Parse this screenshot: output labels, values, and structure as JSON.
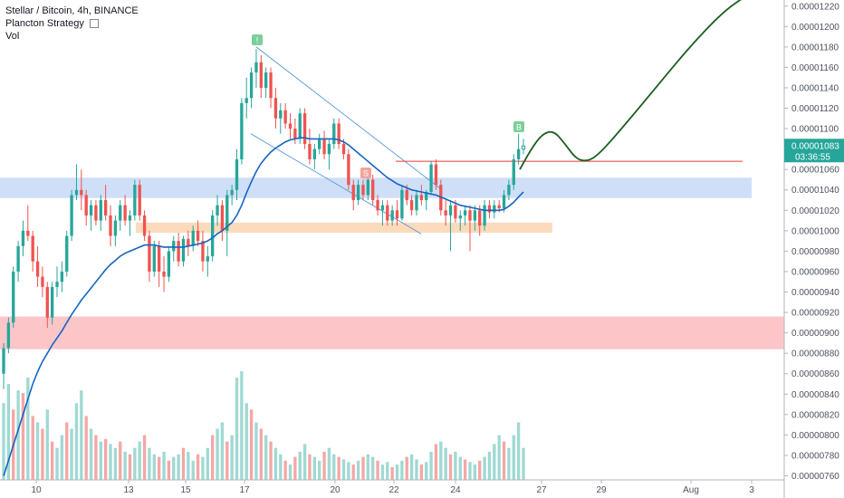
{
  "legend": {
    "symbol_line": "Stellar / Bitcoin, 4h, BINANCE",
    "strategy": "Plancton Strategy",
    "strategy_icon": "settings-icon",
    "vol": "Vol"
  },
  "price_label": {
    "value": "0.00001083",
    "countdown": "03:36:55",
    "color": "#26a69a"
  },
  "markers": {
    "top": "!",
    "sell": "S",
    "buy": "B"
  },
  "colors": {
    "up": "#26a69a",
    "down": "#ef5350",
    "vol_up": "#9fd9d3",
    "vol_down": "#f5a7a5",
    "ma": "#1565c0",
    "projection": "#1b5e20",
    "resistance_line": "#e53935",
    "zone_blue": "#c7d9f7",
    "zone_orange": "#fbd5b0",
    "zone_red": "#fbbcbf",
    "channel": "#4a8fd6"
  },
  "chart_data": {
    "type": "candlestick",
    "title": "Stellar / Bitcoin, 4h, BINANCE",
    "y_axis": {
      "range": [
        7.56e-06,
        1.226e-05
      ],
      "tick_labels": [
        "0.00001220",
        "0.00001200",
        "0.00001180",
        "0.00001160",
        "0.00001140",
        "0.00001120",
        "0.00001100",
        "0.00001080",
        "0.00001060",
        "0.00001040",
        "0.00001020",
        "0.00001000",
        "0.00000980",
        "0.00000960",
        "0.00000940",
        "0.00000920",
        "0.00000900",
        "0.00000880",
        "0.00000860",
        "0.00000840",
        "0.00000820",
        "0.00000800",
        "0.00000780",
        "0.00000760"
      ]
    },
    "x_axis": {
      "tick_labels": [
        "10",
        "13",
        "15",
        "17",
        "20",
        "22",
        "24",
        "27",
        "29",
        "Aug",
        "3"
      ]
    },
    "candles": [
      [
        8.6e-06,
        8.9e-06,
        8.45e-06,
        8.85e-06
      ],
      [
        8.85e-06,
        9.15e-06,
        8.8e-06,
        9.1e-06
      ],
      [
        9.1e-06,
        9.65e-06,
        9.05e-06,
        9.6e-06
      ],
      [
        9.6e-06,
        9.9e-06,
        9.5e-06,
        9.85e-06
      ],
      [
        9.85e-06,
        1.01e-05,
        9.75e-06,
        1e-05
      ],
      [
        1e-05,
        1.025e-05,
        9.9e-06,
        9.95e-06
      ],
      [
        9.95e-06,
        1e-05,
        9.6e-06,
        9.7e-06
      ],
      [
        9.7e-06,
        9.85e-06,
        9.45e-06,
        9.55e-06
      ],
      [
        9.55e-06,
        9.65e-06,
        9.35e-06,
        9.45e-06
      ],
      [
        9.45e-06,
        9.5e-06,
        9.05e-06,
        9.15e-06
      ],
      [
        9.15e-06,
        9.5e-06,
        9.08e-06,
        9.45e-06
      ],
      [
        9.45e-06,
        9.65e-06,
        9.35e-06,
        9.5e-06
      ],
      [
        9.5e-06,
        9.7e-06,
        9.4e-06,
        9.6e-06
      ],
      [
        9.6e-06,
        1e-05,
        9.55e-06,
        9.95e-06
      ],
      [
        9.95e-06,
        1.04e-05,
        9.9e-06,
        1.035e-05
      ],
      [
        1.035e-05,
        1.065e-05,
        1.03e-05,
        1.04e-05
      ],
      [
        1.04e-05,
        1.06e-05,
        1.02e-05,
        1.035e-05
      ],
      [
        1.035e-05,
        1.04e-05,
        1.005e-05,
        1.015e-05
      ],
      [
        1.015e-05,
        1.03e-05,
        1e-05,
        1.025e-05
      ],
      [
        1.025e-05,
        1.03e-05,
        1.005e-05,
        1.01e-05
      ],
      [
        1.01e-05,
        1.035e-05,
        1e-05,
        1.03e-05
      ],
      [
        1.03e-05,
        1.045e-05,
        1.01e-05,
        1.015e-05
      ],
      [
        1.015e-05,
        1.025e-05,
        9.85e-06,
        9.95e-06
      ],
      [
        9.95e-06,
        1.015e-05,
        9.85e-06,
        1.01e-05
      ],
      [
        1.01e-05,
        1.03e-05,
        1e-05,
        1.025e-05
      ],
      [
        1.025e-05,
        1.035e-05,
        1.005e-05,
        1.01e-05
      ],
      [
        1.01e-05,
        1.02e-05,
        9.95e-06,
        1.015e-05
      ],
      [
        1.015e-05,
        1.05e-05,
        1.01e-05,
        1.045e-05
      ],
      [
        1.045e-05,
        1.05e-05,
        1.01e-05,
        1.015e-05
      ],
      [
        1.015e-05,
        1.02e-05,
        9.9e-06,
        9.95e-06
      ],
      [
        9.95e-06,
        1e-05,
        9.5e-06,
        9.6e-06
      ],
      [
        9.6e-06,
        9.9e-06,
        9.55e-06,
        9.85e-06
      ],
      [
        9.85e-06,
        9.9e-06,
        9.45e-06,
        9.6e-06
      ],
      [
        9.6e-06,
        9.75e-06,
        9.4e-06,
        9.55e-06
      ],
      [
        9.55e-06,
        9.85e-06,
        9.5e-06,
        9.8e-06
      ],
      [
        9.8e-06,
        9.95e-06,
        9.7e-06,
        9.9e-06
      ],
      [
        9.9e-06,
        9.98e-06,
        9.65e-06,
        9.7e-06
      ],
      [
        9.7e-06,
        9.95e-06,
        9.65e-06,
        9.92e-06
      ],
      [
        9.92e-06,
        1e-05,
        9.75e-06,
        9.85e-06
      ],
      [
        9.85e-06,
        1.005e-05,
        9.8e-06,
        1e-05
      ],
      [
        1e-05,
        1.01e-05,
        9.85e-06,
        9.9e-06
      ],
      [
        9.9e-06,
        1e-05,
        9.6e-06,
        9.7e-06
      ],
      [
        9.7e-06,
        9.85e-06,
        9.55e-06,
        9.75e-06
      ],
      [
        9.75e-06,
        1.02e-05,
        9.7e-06,
        1.015e-05
      ],
      [
        1.015e-05,
        1.035e-05,
        1.005e-05,
        1.025e-05
      ],
      [
        1.025e-05,
        1.03e-05,
        9.9e-06,
        1e-05
      ],
      [
        1e-05,
        1.04e-05,
        9.75e-06,
        1.035e-05
      ],
      [
        1.035e-05,
        1.045e-05,
        1.025e-05,
        1.04e-05
      ],
      [
        1.04e-05,
        1.08e-05,
        1.03e-05,
        1.07e-05
      ],
      [
        1.07e-05,
        1.13e-05,
        1.065e-05,
        1.125e-05
      ],
      [
        1.125e-05,
        1.15e-05,
        1.11e-05,
        1.13e-05
      ],
      [
        1.13e-05,
        1.16e-05,
        1.12e-05,
        1.155e-05
      ],
      [
        1.155e-05,
        1.178e-05,
        1.14e-05,
        1.165e-05
      ],
      [
        1.165e-05,
        1.172e-05,
        1.13e-05,
        1.14e-05
      ],
      [
        1.14e-05,
        1.16e-05,
        1.13e-05,
        1.155e-05
      ],
      [
        1.155e-05,
        1.16e-05,
        1.12e-05,
        1.13e-05
      ],
      [
        1.13e-05,
        1.14e-05,
        1.1e-05,
        1.11e-05
      ],
      [
        1.11e-05,
        1.125e-05,
        1.095e-05,
        1.118e-05
      ],
      [
        1.118e-05,
        1.125e-05,
        1.1e-05,
        1.105e-05
      ],
      [
        1.105e-05,
        1.115e-05,
        1.09e-05,
        1.1e-05
      ],
      [
        1.1e-05,
        1.11e-05,
        1.085e-05,
        1.09e-05
      ],
      [
        1.09e-05,
        1.12e-05,
        1.085e-05,
        1.115e-05
      ],
      [
        1.115e-05,
        1.12e-05,
        1.08e-05,
        1.085e-05
      ],
      [
        1.085e-05,
        1.1e-05,
        1.065e-05,
        1.07e-05
      ],
      [
        1.07e-05,
        1.085e-05,
        1.06e-05,
        1.08e-05
      ],
      [
        1.08e-05,
        1.095e-05,
        1.075e-05,
        1.09e-05
      ],
      [
        1.09e-05,
        1.098e-05,
        1.07e-05,
        1.075e-05
      ],
      [
        1.075e-05,
        1.09e-05,
        1.06e-05,
        1.085e-05
      ],
      [
        1.085e-05,
        1.11e-05,
        1.08e-05,
        1.105e-05
      ],
      [
        1.105e-05,
        1.11e-05,
        1.08e-05,
        1.085e-05
      ],
      [
        1.085e-05,
        1.09e-05,
        1.07e-05,
        1.075e-05
      ],
      [
        1.075e-05,
        1.08e-05,
        1.04e-05,
        1.045e-05
      ],
      [
        1.045e-05,
        1.05e-05,
        1.02e-05,
        1.03e-05
      ],
      [
        1.03e-05,
        1.05e-05,
        1.025e-05,
        1.045e-05
      ],
      [
        1.045e-05,
        1.05e-05,
        1.03e-05,
        1.035e-05
      ],
      [
        1.035e-05,
        1.055e-05,
        1.03e-05,
        1.05e-05
      ],
      [
        1.05e-05,
        1.055e-05,
        1.025e-05,
        1.03e-05
      ],
      [
        1.03e-05,
        1.035e-05,
        1.015e-05,
        1.02e-05
      ],
      [
        1.02e-05,
        1.03e-05,
        1.005e-05,
        1.025e-05
      ],
      [
        1.025e-05,
        1.03e-05,
        1.005e-05,
        1.01e-05
      ],
      [
        1.01e-05,
        1.025e-05,
        1.005e-05,
        1.02e-05
      ],
      [
        1.02e-05,
        1.03e-05,
        1.005e-05,
        1.012e-05
      ],
      [
        1.012e-05,
        1.045e-05,
        1.01e-05,
        1.04e-05
      ],
      [
        1.04e-05,
        1.045e-05,
        1.025e-05,
        1.03e-05
      ],
      [
        1.03e-05,
        1.035e-05,
        1.015e-05,
        1.02e-05
      ],
      [
        1.02e-05,
        1.04e-05,
        1.015e-05,
        1.035e-05
      ],
      [
        1.035e-05,
        1.045e-05,
        1.025e-05,
        1.03e-05
      ],
      [
        1.03e-05,
        1.04e-05,
        1.02e-05,
        1.038e-05
      ],
      [
        1.038e-05,
        1.068e-05,
        1.035e-05,
        1.065e-05
      ],
      [
        1.065e-05,
        1.07e-05,
        1.04e-05,
        1.045e-05
      ],
      [
        1.045e-05,
        1.05e-05,
        1.015e-05,
        1.02e-05
      ],
      [
        1.02e-05,
        1.03e-05,
        1.005e-05,
        1.015e-05
      ],
      [
        1.015e-05,
        1.03e-05,
        9.8e-06,
        1.025e-05
      ],
      [
        1.025e-05,
        1.03e-05,
        1.008e-05,
        1.012e-05
      ],
      [
        1.012e-05,
        1.02e-05,
        1e-05,
        1.015e-05
      ],
      [
        1.015e-05,
        1.025e-05,
        1.005e-05,
        1.02e-05
      ],
      [
        1.02e-05,
        1.025e-05,
        9.8e-06,
        1.01e-05
      ],
      [
        1.01e-05,
        1.025e-05,
        1e-05,
        1.02e-05
      ],
      [
        1.02e-05,
        1.025e-05,
        9.95e-06,
        1.005e-05
      ],
      [
        1.005e-05,
        1.03e-05,
        1e-05,
        1.025e-05
      ],
      [
        1.025e-05,
        1.03e-05,
        1.012e-05,
        1.018e-05
      ],
      [
        1.018e-05,
        1.03e-05,
        1.012e-05,
        1.025e-05
      ],
      [
        1.025e-05,
        1.03e-05,
        1.018e-05,
        1.022e-05
      ],
      [
        1.022e-05,
        1.04e-05,
        1.018e-05,
        1.035e-05
      ],
      [
        1.035e-05,
        1.05e-05,
        1.03e-05,
        1.045e-05
      ],
      [
        1.045e-05,
        1.075e-05,
        1.04e-05,
        1.07e-05
      ],
      [
        1.07e-05,
        1.095e-05,
        1.065e-05,
        1.08e-05
      ],
      [
        1.08e-05,
        1.09e-05,
        1.075e-05,
        1.083e-05
      ]
    ],
    "volume": [
      [
        60,
        1
      ],
      [
        75,
        1
      ],
      [
        55,
        0
      ],
      [
        70,
        1
      ],
      [
        68,
        0
      ],
      [
        80,
        1
      ],
      [
        50,
        0
      ],
      [
        45,
        1
      ],
      [
        40,
        0
      ],
      [
        55,
        1
      ],
      [
        30,
        0
      ],
      [
        25,
        1
      ],
      [
        35,
        1
      ],
      [
        45,
        0
      ],
      [
        40,
        1
      ],
      [
        60,
        1
      ],
      [
        70,
        1
      ],
      [
        50,
        0
      ],
      [
        40,
        1
      ],
      [
        35,
        0
      ],
      [
        30,
        1
      ],
      [
        32,
        0
      ],
      [
        28,
        1
      ],
      [
        25,
        1
      ],
      [
        30,
        0
      ],
      [
        22,
        1
      ],
      [
        20,
        0
      ],
      [
        25,
        1
      ],
      [
        30,
        1
      ],
      [
        35,
        0
      ],
      [
        25,
        1
      ],
      [
        20,
        1
      ],
      [
        18,
        0
      ],
      [
        22,
        1
      ],
      [
        15,
        0
      ],
      [
        18,
        1
      ],
      [
        20,
        1
      ],
      [
        25,
        0
      ],
      [
        22,
        1
      ],
      [
        15,
        1
      ],
      [
        20,
        0
      ],
      [
        18,
        1
      ],
      [
        25,
        1
      ],
      [
        35,
        0
      ],
      [
        40,
        1
      ],
      [
        45,
        1
      ],
      [
        30,
        0
      ],
      [
        35,
        1
      ],
      [
        80,
        1
      ],
      [
        85,
        1
      ],
      [
        60,
        1
      ],
      [
        55,
        0
      ],
      [
        45,
        1
      ],
      [
        40,
        0
      ],
      [
        35,
        1
      ],
      [
        30,
        0
      ],
      [
        25,
        1
      ],
      [
        20,
        1
      ],
      [
        15,
        0
      ],
      [
        12,
        1
      ],
      [
        18,
        0
      ],
      [
        22,
        1
      ],
      [
        28,
        1
      ],
      [
        20,
        0
      ],
      [
        18,
        1
      ],
      [
        15,
        1
      ],
      [
        22,
        0
      ],
      [
        25,
        1
      ],
      [
        20,
        1
      ],
      [
        18,
        0
      ],
      [
        16,
        1
      ],
      [
        14,
        1
      ],
      [
        12,
        0
      ],
      [
        15,
        1
      ],
      [
        18,
        0
      ],
      [
        20,
        1
      ],
      [
        18,
        1
      ],
      [
        15,
        0
      ],
      [
        12,
        1
      ],
      [
        14,
        1
      ],
      [
        10,
        0
      ],
      [
        12,
        1
      ],
      [
        15,
        1
      ],
      [
        18,
        0
      ],
      [
        20,
        1
      ],
      [
        16,
        1
      ],
      [
        12,
        0
      ],
      [
        14,
        1
      ],
      [
        22,
        1
      ],
      [
        28,
        0
      ],
      [
        30,
        1
      ],
      [
        25,
        1
      ],
      [
        20,
        0
      ],
      [
        22,
        1
      ],
      [
        18,
        1
      ],
      [
        16,
        0
      ],
      [
        14,
        1
      ],
      [
        12,
        1
      ],
      [
        15,
        0
      ],
      [
        18,
        1
      ],
      [
        22,
        1
      ],
      [
        28,
        1
      ],
      [
        35,
        1
      ],
      [
        30,
        0
      ],
      [
        25,
        1
      ],
      [
        35,
        1
      ],
      [
        45,
        1
      ],
      [
        25,
        1
      ]
    ],
    "ma_values": [
      7.6e-06,
      7.75e-06,
      7.9e-06,
      8.05e-06,
      8.2e-06,
      8.35e-06,
      8.5e-06,
      8.62e-06,
      8.72e-06,
      8.8e-06,
      8.88e-06,
      8.95e-06,
      9.02e-06,
      9.1e-06,
      9.18e-06,
      9.25e-06,
      9.32e-06,
      9.38e-06,
      9.44e-06,
      9.5e-06,
      9.56e-06,
      9.62e-06,
      9.67e-06,
      9.71e-06,
      9.75e-06,
      9.78e-06,
      9.8e-06,
      9.82e-06,
      9.84e-06,
      9.86e-06,
      9.86e-06,
      9.86e-06,
      9.85e-06,
      9.84e-06,
      9.84e-06,
      9.84e-06,
      9.84e-06,
      9.84e-06,
      9.85e-06,
      9.86e-06,
      9.87e-06,
      9.88e-06,
      9.9e-06,
      9.93e-06,
      9.97e-06,
      1e-05,
      1.004e-05,
      1.008e-05,
      1.015e-05,
      1.025e-05,
      1.037e-05,
      1.048e-05,
      1.058e-05,
      1.066e-05,
      1.072e-05,
      1.077e-05,
      1.081e-05,
      1.084e-05,
      1.087e-05,
      1.089e-05,
      1.09e-05,
      1.091e-05,
      1.091e-05,
      1.09e-05,
      1.09e-05,
      1.09e-05,
      1.09e-05,
      1.09e-05,
      1.09e-05,
      1.089e-05,
      1.087e-05,
      1.084e-05,
      1.08e-05,
      1.076e-05,
      1.072e-05,
      1.068e-05,
      1.064e-05,
      1.06e-05,
      1.056e-05,
      1.052e-05,
      1.049e-05,
      1.046e-05,
      1.044e-05,
      1.042e-05,
      1.04e-05,
      1.039e-05,
      1.038e-05,
      1.037e-05,
      1.036e-05,
      1.035e-05,
      1.033e-05,
      1.031e-05,
      1.029e-05,
      1.027e-05,
      1.025e-05,
      1.024e-05,
      1.023e-05,
      1.022e-05,
      1.021e-05,
      1.02e-05,
      1.02e-05,
      1.02e-05,
      1.02e-05,
      1.021e-05,
      1.024e-05,
      1.028e-05,
      1.033e-05,
      1.038e-05
    ],
    "zones": [
      {
        "name": "blue-zone",
        "y_top": 1.052e-05,
        "y_bottom": 1.032e-05
      },
      {
        "name": "orange-zone",
        "y_top": 1.008e-05,
        "y_bottom": 9.98e-06
      },
      {
        "name": "red-zone",
        "y_top": 9.16e-06,
        "y_bottom": 8.84e-06
      }
    ],
    "resistance_line": 1.068e-05,
    "projection_path": [
      [
        1.06e-05,
        0
      ],
      [
        1.08e-05,
        1
      ],
      [
        1.095e-05,
        2
      ],
      [
        1.098e-05,
        3
      ],
      [
        1.085e-05,
        4
      ],
      [
        1.07e-05,
        5
      ],
      [
        1.068e-05,
        6
      ],
      [
        1.075e-05,
        7
      ],
      [
        1.1e-05,
        9
      ],
      [
        1.14e-05,
        12
      ],
      [
        1.18e-05,
        15
      ],
      [
        1.215e-05,
        18
      ],
      [
        1.23e-05,
        20
      ]
    ]
  }
}
